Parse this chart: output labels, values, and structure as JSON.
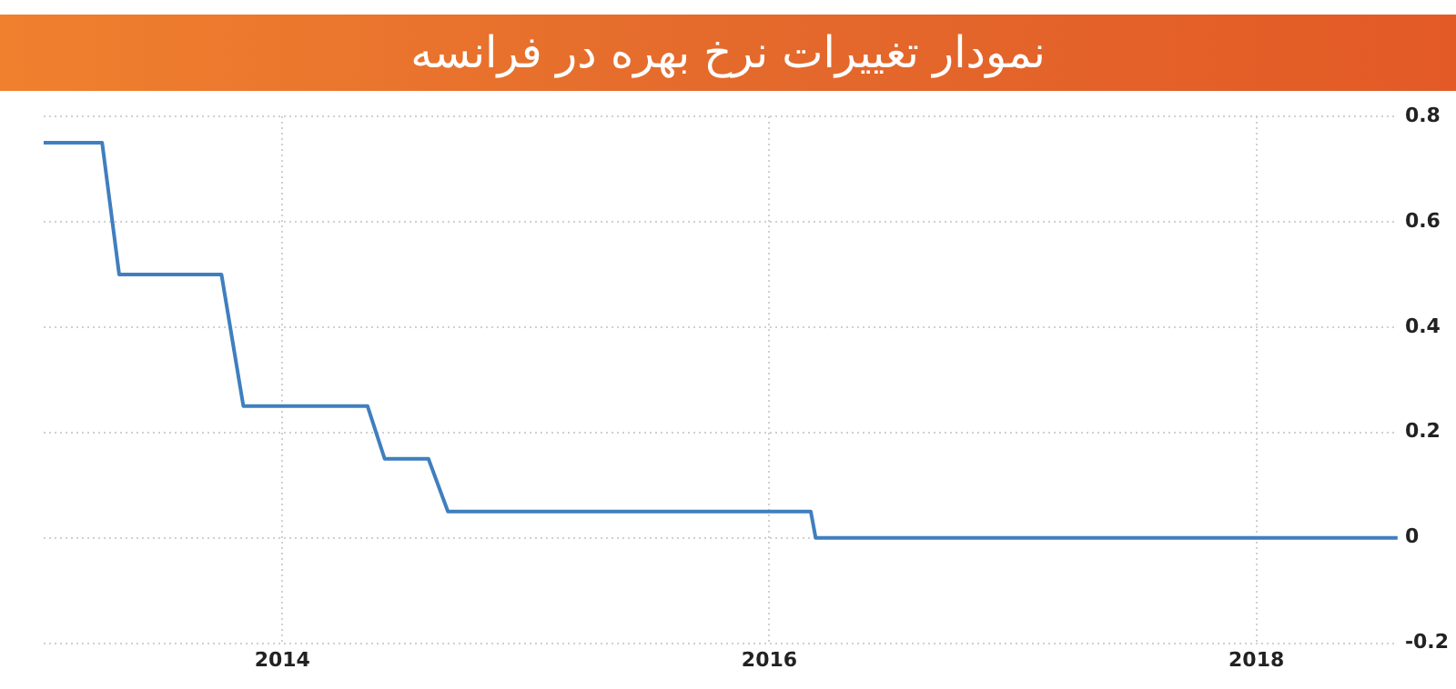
{
  "chart_data": {
    "type": "line",
    "title": "نمودار تغییرات نرخ بهره در فرانسه",
    "series": [
      {
        "color": "#3f7fbf",
        "x": [
          2013.02,
          2013.26,
          2013.33,
          2013.75,
          2013.84,
          2014.35,
          2014.42,
          2014.6,
          2014.68,
          2016.17,
          2016.19,
          2018.58
        ],
        "values": [
          0.75,
          0.75,
          0.5,
          0.5,
          0.25,
          0.25,
          0.15,
          0.15,
          0.05,
          0.05,
          0,
          0
        ]
      }
    ],
    "xlim": [
      2013.02,
      2018.58
    ],
    "xticks": [
      2014,
      2016,
      2018
    ],
    "ylim": [
      -0.2,
      0.8
    ],
    "yticks": [
      -0.2,
      0,
      0.2,
      0.4,
      0.6,
      0.8
    ],
    "grid": true,
    "legend": false,
    "marker": "none",
    "line_style": "solid"
  }
}
